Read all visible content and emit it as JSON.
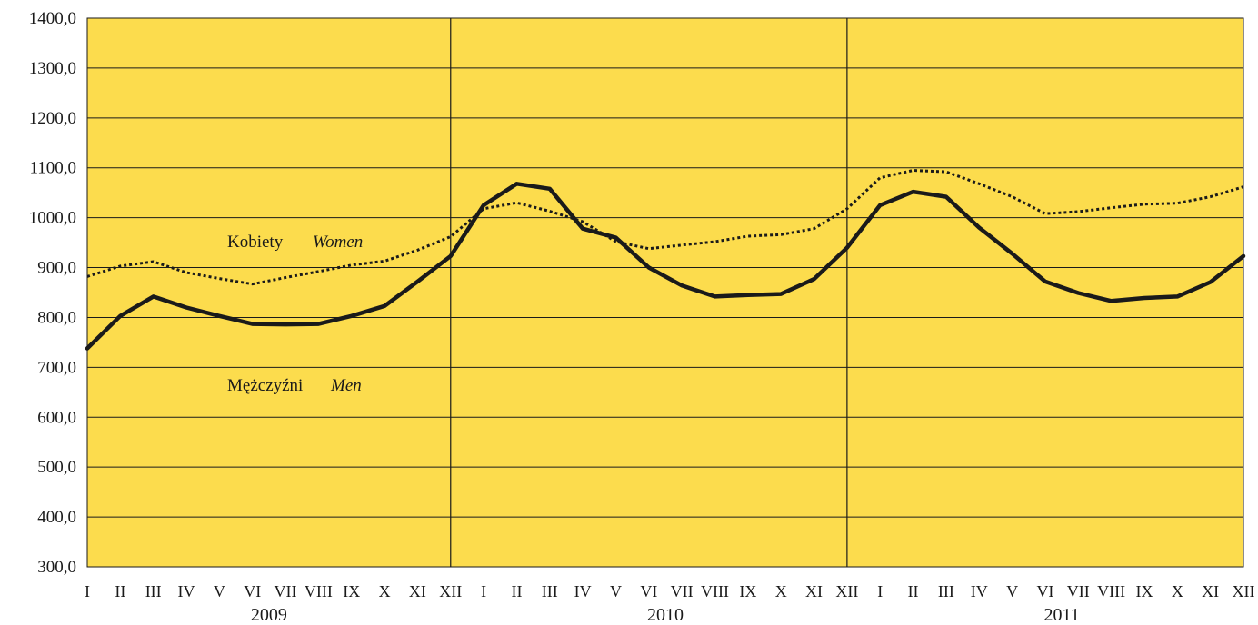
{
  "chart_data": {
    "type": "line",
    "title": "",
    "xlabel": "",
    "ylabel": "",
    "ylim": [
      300,
      1400
    ],
    "y_ticks": [
      "300,0",
      "400,0",
      "500,0",
      "600,0",
      "700,0",
      "800,0",
      "900,0",
      "1000,0",
      "1100,0",
      "1200,0",
      "1300,0",
      "1400,0"
    ],
    "grid": true,
    "background_color": "#fcdc4d",
    "categories": [
      "I",
      "II",
      "III",
      "IV",
      "V",
      "VI",
      "VII",
      "VIII",
      "IX",
      "X",
      "XI",
      "XII",
      "I",
      "II",
      "III",
      "IV",
      "V",
      "VI",
      "VII",
      "VIII",
      "IX",
      "X",
      "XI",
      "XII",
      "I",
      "II",
      "III",
      "IV",
      "V",
      "VI",
      "VII",
      "VIII",
      "IX",
      "X",
      "XI",
      "XII"
    ],
    "years": [
      "2009",
      "2010",
      "2011"
    ],
    "series": [
      {
        "name": "Kobiety",
        "name_en": "Women",
        "style": "dotted",
        "color": "#1a1a1a",
        "values": [
          882,
          903,
          912,
          890,
          878,
          867,
          880,
          892,
          905,
          913,
          935,
          962,
          1018,
          1030,
          1013,
          992,
          952,
          938,
          945,
          952,
          963,
          966,
          978,
          1018,
          1080,
          1095,
          1092,
          1068,
          1042,
          1008,
          1012,
          1020,
          1027,
          1029,
          1042,
          1062
        ]
      },
      {
        "name": "Mężczyźni",
        "name_en": "Men",
        "style": "solid",
        "color": "#1a1a1a",
        "values": [
          738,
          803,
          842,
          820,
          803,
          787,
          786,
          787,
          803,
          823,
          872,
          923,
          1025,
          1068,
          1058,
          978,
          960,
          900,
          864,
          842,
          845,
          847,
          877,
          940,
          1025,
          1052,
          1042,
          980,
          928,
          872,
          849,
          833,
          839,
          842,
          871,
          923
        ]
      }
    ]
  }
}
